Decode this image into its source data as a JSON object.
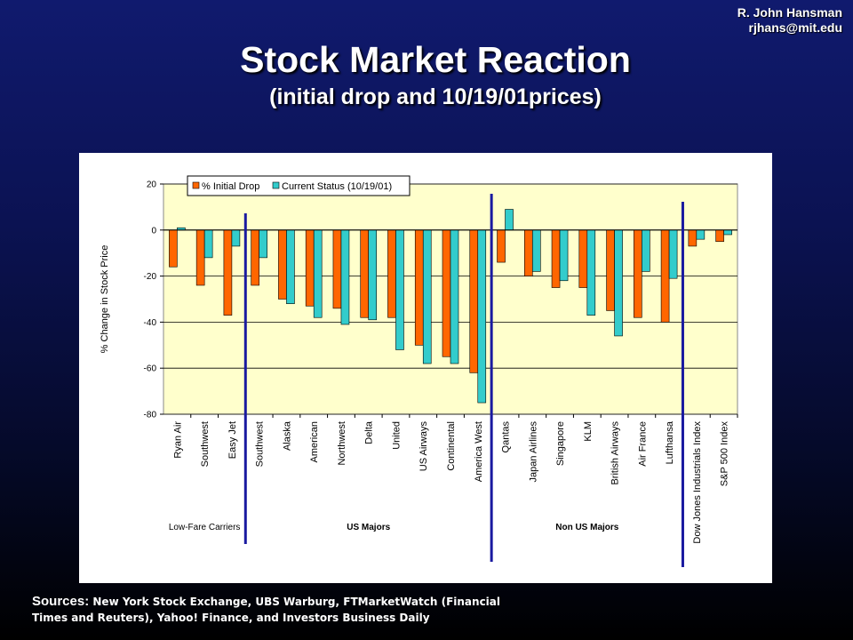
{
  "header": {
    "author": "R. John Hansman",
    "email": "rjhans@mit.edu",
    "title": "Stock Market Reaction",
    "subtitle": "(initial drop and 10/19/01prices)"
  },
  "sources": {
    "label": "Sources:",
    "line1": " New York Stock Exchange, UBS Warburg, FTMarketWatch (Financial",
    "line2": "Times and Reuters), Yahoo! Finance, and Investors Business Daily"
  },
  "colors": {
    "initial_drop": "#ff6600",
    "current_status": "#33cccc",
    "plot_bg": "#ffffcc",
    "divider": "#1a1aa0"
  },
  "chart_data": {
    "type": "bar",
    "title": "",
    "xlabel": "",
    "ylabel": "% Change in Stock Price",
    "ylim": [
      -80,
      20
    ],
    "yticks": [
      20,
      0,
      -20,
      -40,
      -60,
      -80
    ],
    "grid": true,
    "legend_position": "top",
    "categories": [
      "Ryan Air",
      "Southwest",
      "Easy Jet",
      "Southwest",
      "Alaska",
      "American",
      "Northwest",
      "Delta",
      "United",
      "US Airways",
      "Continental",
      "America West",
      "Qantas",
      "Japan Airlines",
      "Singapore",
      "KLM",
      "British Airways",
      "Air France",
      "Lufthansa",
      "Dow Jones Industrials Index",
      "S&P 500 Index"
    ],
    "series": [
      {
        "name": "% Initial Drop",
        "values": [
          -16,
          -24,
          -37,
          -24,
          -30,
          -33,
          -34,
          -38,
          -38,
          -50,
          -55,
          -62,
          -14,
          -20,
          -25,
          -25,
          -35,
          -38,
          -40,
          -7,
          -5
        ]
      },
      {
        "name": "Current Status (10/19/01)",
        "values": [
          1,
          -12,
          -7,
          -12,
          -32,
          -38,
          -41,
          -39,
          -52,
          -58,
          -58,
          -75,
          9,
          -18,
          -22,
          -37,
          -46,
          -18,
          -21,
          -4,
          -2
        ]
      }
    ],
    "groups": [
      {
        "label": "Low-Fare Carriers",
        "start": 0,
        "end": 2
      },
      {
        "label": "US Majors",
        "start": 3,
        "end": 11
      },
      {
        "label": "Non US Majors",
        "start": 12,
        "end": 18
      }
    ]
  }
}
